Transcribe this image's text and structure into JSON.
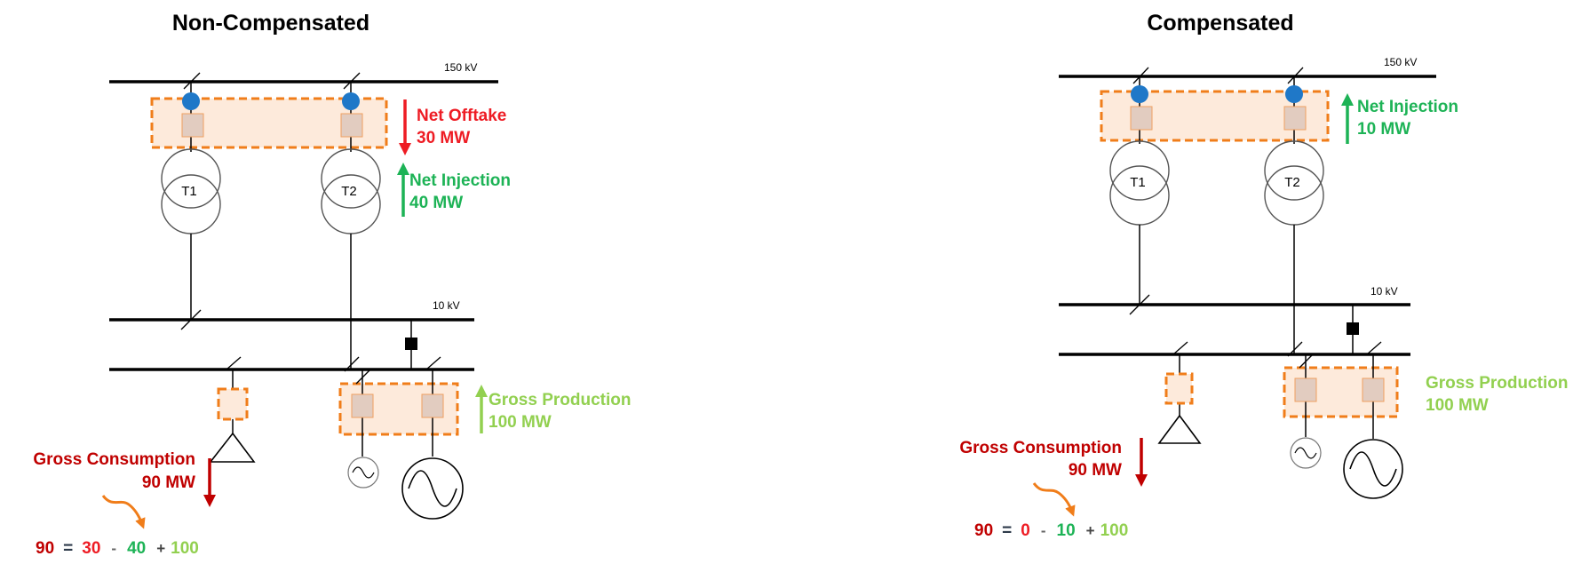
{
  "colors": {
    "offtake": "#ee1c24",
    "injection": "#1db356",
    "production": "#92d050",
    "consumption": "#c00000",
    "operator": "#666666",
    "meter_dot": "#1f78c8",
    "zone_border": "#f07d1a"
  },
  "panels": [
    {
      "title": "Non-Compensated",
      "hv_bus_label": "150 kV",
      "mv_bus_label": "10 kV",
      "transformers": [
        "T1",
        "T2"
      ],
      "grid_flow_primary": {
        "label": "Net Offtake",
        "value": "30 MW",
        "direction": "down"
      },
      "grid_flow_secondary": {
        "label": "Net Injection",
        "value": "40 MW",
        "direction": "up"
      },
      "production": {
        "label": "Gross Production",
        "value": "100 MW",
        "direction": "up"
      },
      "consumption": {
        "label": "Gross Consumption",
        "value": "90 MW",
        "direction": "down"
      },
      "equation": {
        "total": "90",
        "eq": "=",
        "a": "30",
        "op1": "-",
        "b": "40",
        "op2": "+",
        "c": "100"
      }
    },
    {
      "title": "Compensated",
      "hv_bus_label": "150 kV",
      "mv_bus_label": "10 kV",
      "transformers": [
        "T1",
        "T2"
      ],
      "grid_flow_primary": {
        "label": "Net Injection",
        "value": "10 MW",
        "direction": "up"
      },
      "production": {
        "label": "Gross Production",
        "value": "100 MW",
        "direction": "up"
      },
      "consumption": {
        "label": "Gross Consumption",
        "value": "90 MW",
        "direction": "down"
      },
      "equation": {
        "total": "90",
        "eq": "=",
        "a": "0",
        "op1": "-",
        "b": "10",
        "op2": "+",
        "c": "100"
      }
    }
  ]
}
